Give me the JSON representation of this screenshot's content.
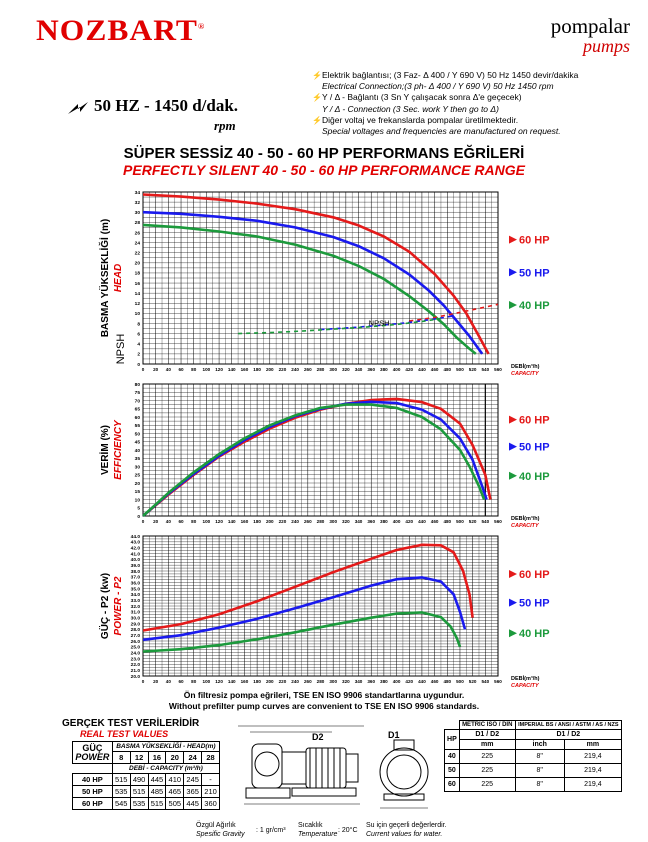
{
  "header": {
    "brand": "NOZBART",
    "brand_mark": "®",
    "category_tr": "pompalar",
    "category_en": "pumps"
  },
  "spec": {
    "frequency": "50 HZ - 1450 d/dak.",
    "rpm": "rpm",
    "notes": [
      {
        "text": "Elektrik bağlantısı; (3 Faz- Δ 400 / Y 690 V) 50 Hz 1450 devir/dakika",
        "italic": false,
        "icon": true
      },
      {
        "text": "Electrical Connection;(3 ph- Δ 400 / Y 690 V) 50 Hz 1450 rpm",
        "italic": true,
        "icon": false
      },
      {
        "text": "Y / Δ - Bağlantı (3 Sn Y çalışacak sonra Δ'e geçecek)",
        "italic": false,
        "icon": true
      },
      {
        "text": "Y / Δ - Connection (3 Sec. work Y then go to Δ)",
        "italic": true,
        "icon": false
      },
      {
        "text": "Diğer voltaj ve frekanslarda pompalar üretilmektedir.",
        "italic": false,
        "icon": true
      },
      {
        "text": "Special voltages and frequencies are manufactured on request.",
        "italic": true,
        "icon": false
      }
    ]
  },
  "titles": {
    "tr": "SÜPER SESSİZ 40 - 50 - 60 HP PERFORMANS EĞRİLERİ",
    "en": "PERFECTLY SILENT 40 - 50 - 60 HP PERFORMANCE RANGE"
  },
  "colors": {
    "hp60": "#e41a1a",
    "hp50": "#1a1aee",
    "hp40": "#1c9a3c",
    "accent": "#e00000"
  },
  "legend": [
    {
      "label": "60  HP",
      "color_key": "hp60"
    },
    {
      "label": "50  HP",
      "color_key": "hp50"
    },
    {
      "label": "40  HP",
      "color_key": "hp40"
    }
  ],
  "chart_data": [
    {
      "type": "line",
      "id": "head",
      "ylabel_tr": "BASMA YÜKSEKLİĞİ (m)",
      "ylabel_en": "HEAD",
      "ylabel2": "NPSH",
      "xlabel_tr": "DEBİ(m³/h)",
      "xlabel_en": "CAPACITY",
      "xlim": [
        0,
        560
      ],
      "ylim": [
        0,
        34
      ],
      "xticks": [
        0,
        20,
        40,
        60,
        80,
        100,
        120,
        140,
        160,
        180,
        200,
        220,
        240,
        260,
        280,
        300,
        320,
        340,
        360,
        380,
        400,
        420,
        440,
        460,
        480,
        500,
        520,
        540,
        560
      ],
      "yticks": [
        0,
        2,
        4,
        6,
        8,
        10,
        12,
        14,
        16,
        18,
        20,
        22,
        24,
        26,
        28,
        30,
        32,
        34
      ],
      "annotation": "NPSH",
      "series": [
        {
          "name": "60 HP",
          "color_key": "hp60",
          "x": [
            0,
            60,
            120,
            180,
            240,
            300,
            340,
            380,
            420,
            460,
            490,
            510,
            530,
            545
          ],
          "y": [
            33.5,
            33.1,
            32.5,
            31.7,
            30.6,
            29,
            27.4,
            25.2,
            22.2,
            17.8,
            13.5,
            10,
            5.5,
            2
          ]
        },
        {
          "name": "50 HP",
          "color_key": "hp50",
          "x": [
            0,
            60,
            120,
            180,
            240,
            300,
            340,
            380,
            420,
            450,
            475,
            495,
            515,
            535
          ],
          "y": [
            30,
            29.7,
            29.1,
            28.3,
            27,
            25.1,
            23.3,
            20.9,
            17.7,
            14.6,
            11.5,
            8.5,
            5.5,
            2
          ]
        },
        {
          "name": "40 HP",
          "color_key": "hp40",
          "x": [
            0,
            60,
            120,
            180,
            240,
            300,
            340,
            380,
            420,
            450,
            475,
            495,
            515,
            525
          ],
          "y": [
            27.5,
            27,
            26.2,
            25.2,
            23.6,
            21.4,
            19.4,
            16.8,
            13.4,
            10.5,
            7.8,
            5.2,
            3,
            2
          ]
        },
        {
          "name": "NPSH 60 HP",
          "color_key": "hp60",
          "dashed": true,
          "x": [
            420,
            460,
            500,
            530,
            560
          ],
          "y": [
            8.5,
            9.2,
            10.2,
            11,
            11.8
          ]
        },
        {
          "name": "NPSH 50 HP",
          "color_key": "hp50",
          "dashed": true,
          "x": [
            280,
            330,
            380,
            420,
            460,
            490
          ],
          "y": [
            6.8,
            7.2,
            7.7,
            8.2,
            8.9,
            9.5
          ]
        },
        {
          "name": "NPSH 40 HP",
          "color_key": "hp40",
          "dashed": true,
          "x": [
            150,
            200,
            250,
            300,
            350,
            400,
            440,
            470
          ],
          "y": [
            6,
            6.2,
            6.5,
            6.9,
            7.3,
            7.8,
            8.4,
            9
          ]
        }
      ]
    },
    {
      "type": "line",
      "id": "efficiency",
      "ylabel_tr": "VERİM (%)",
      "ylabel_en": "EFFICIENCY",
      "xlabel_tr": "DEBİ(m³/h)",
      "xlabel_en": "CAPACITY",
      "xlim": [
        0,
        560
      ],
      "ylim": [
        0,
        80
      ],
      "xticks": [
        0,
        20,
        40,
        60,
        80,
        100,
        120,
        140,
        160,
        180,
        200,
        220,
        240,
        260,
        280,
        300,
        320,
        340,
        360,
        380,
        400,
        420,
        440,
        460,
        480,
        500,
        520,
        540,
        560
      ],
      "yticks": [
        0,
        5,
        10,
        15,
        20,
        25,
        30,
        35,
        40,
        45,
        50,
        55,
        60,
        65,
        70,
        75,
        80
      ],
      "series": [
        {
          "name": "60 HP",
          "color_key": "hp60",
          "x": [
            0,
            40,
            80,
            120,
            160,
            200,
            240,
            280,
            320,
            360,
            400,
            440,
            470,
            500,
            520,
            540,
            548
          ],
          "y": [
            0,
            13,
            25,
            36,
            45,
            53,
            59.5,
            64.5,
            68,
            70.3,
            71,
            69,
            65,
            56,
            43,
            25,
            10
          ]
        },
        {
          "name": "50 HP",
          "color_key": "hp50",
          "x": [
            0,
            40,
            80,
            120,
            160,
            200,
            240,
            280,
            320,
            360,
            400,
            440,
            470,
            500,
            520,
            535,
            542
          ],
          "y": [
            0,
            13.5,
            25.5,
            36.5,
            46,
            54,
            60.5,
            65,
            68,
            69.2,
            68.5,
            64.5,
            58.5,
            47,
            34,
            18,
            10
          ]
        },
        {
          "name": "40 HP",
          "color_key": "hp40",
          "x": [
            0,
            40,
            80,
            120,
            160,
            200,
            240,
            280,
            320,
            360,
            400,
            440,
            470,
            500,
            515,
            530,
            538
          ],
          "y": [
            0,
            14,
            26.5,
            37.5,
            47,
            55,
            61,
            65.5,
            67.5,
            67.5,
            65.5,
            60,
            52.5,
            40,
            30,
            18,
            10
          ]
        }
      ]
    },
    {
      "type": "line",
      "id": "power",
      "ylabel_tr": "GÜÇ - P2 (kw)",
      "ylabel_en": "POWER - P2",
      "xlabel_tr": "DEBİ(m³/h)",
      "xlabel_en": "CAPACITY",
      "xlim": [
        0,
        560
      ],
      "ylim": [
        20,
        44
      ],
      "xticks": [
        0,
        20,
        40,
        60,
        80,
        100,
        120,
        140,
        160,
        180,
        200,
        220,
        240,
        260,
        280,
        300,
        320,
        340,
        360,
        380,
        400,
        420,
        440,
        460,
        480,
        500,
        520,
        540,
        560
      ],
      "yticks": [
        20,
        21,
        22,
        23,
        24,
        25,
        26,
        27,
        28,
        29,
        30,
        31,
        32,
        33,
        34,
        35,
        36,
        37,
        38,
        39,
        40,
        41,
        42,
        43,
        44
      ],
      "series": [
        {
          "name": "60 HP",
          "color_key": "hp60",
          "x": [
            0,
            60,
            120,
            180,
            240,
            300,
            360,
            400,
            440,
            470,
            490,
            505,
            515,
            520
          ],
          "y": [
            27.8,
            28.9,
            30.6,
            32.8,
            35.3,
            37.8,
            40.1,
            41.6,
            42.5,
            42.4,
            41.2,
            38,
            34,
            30
          ]
        },
        {
          "name": "50 HP",
          "color_key": "hp50",
          "x": [
            0,
            60,
            120,
            180,
            240,
            300,
            360,
            400,
            440,
            470,
            490,
            500,
            508
          ],
          "y": [
            26.2,
            27,
            28.3,
            29.8,
            31.6,
            33.5,
            35.5,
            36.6,
            36.9,
            36.2,
            34,
            31,
            28
          ]
        },
        {
          "name": "40 HP",
          "color_key": "hp40",
          "x": [
            0,
            60,
            120,
            180,
            240,
            300,
            360,
            400,
            440,
            470,
            485,
            495,
            500
          ],
          "y": [
            24.2,
            24.6,
            25.3,
            26.3,
            27.5,
            28.8,
            30,
            30.7,
            30.9,
            30.1,
            28.5,
            26.5,
            25
          ]
        }
      ]
    }
  ],
  "captions": {
    "line1": "Ön filtresiz pompa eğrileri, TSE EN ISO 9906 standartlarına uygundur.",
    "line2": "Without prefilter pump curves are convenient to TSE EN ISO 9906 standards."
  },
  "test_table": {
    "title_tr": "GERÇEK TEST VERİLERİDİR",
    "title_en": "REAL TEST VALUES",
    "corner_tr": "GÜÇ",
    "corner_en": "POWER",
    "head_label": "BASMA YÜKSEKLİĞİ - HEAD(m)",
    "heads": [
      "8",
      "12",
      "16",
      "20",
      "24",
      "28"
    ],
    "capacity_label": "DEBİ - CAPACITY (m³/h)",
    "rows": [
      {
        "hp": "40 HP",
        "values": [
          "515",
          "490",
          "445",
          "410",
          "245",
          "-"
        ]
      },
      {
        "hp": "50 HP",
        "values": [
          "535",
          "515",
          "485",
          "465",
          "365",
          "210"
        ]
      },
      {
        "hp": "60 HP",
        "values": [
          "545",
          "535",
          "515",
          "505",
          "445",
          "360"
        ]
      }
    ]
  },
  "drawing": {
    "label_d1": "D1",
    "label_d2": "D2"
  },
  "dim_table": {
    "metric_header": "METRIC ISO / DIN",
    "imperial_header": "IMPERIAL BS / ANSI / ASTM / AS / NZS",
    "col_hp": "HP",
    "col_d1d2": "D1 / D2",
    "col_d1d2b": "D1 / D2",
    "col_mm": "mm",
    "col_inch": "inch",
    "col_mm2": "mm",
    "rows": [
      {
        "hp": "40",
        "mm": "225",
        "inch": "8\"",
        "mm2": "219,4"
      },
      {
        "hp": "50",
        "mm": "225",
        "inch": "8\"",
        "mm2": "219,4"
      },
      {
        "hp": "60",
        "mm": "225",
        "inch": "8\"",
        "mm2": "219,4"
      }
    ]
  },
  "footer": {
    "sg_tr": "Özgül Ağırlık",
    "sg_en": "Spesific Gravity",
    "sg_val": ": 1 gr/cm³",
    "temp_tr": "Sıcaklık",
    "temp_en": "Temperature",
    "temp_val": ": 20°C",
    "water_tr": "Su için geçerli değerlerdir.",
    "water_en": "Current values for water."
  }
}
